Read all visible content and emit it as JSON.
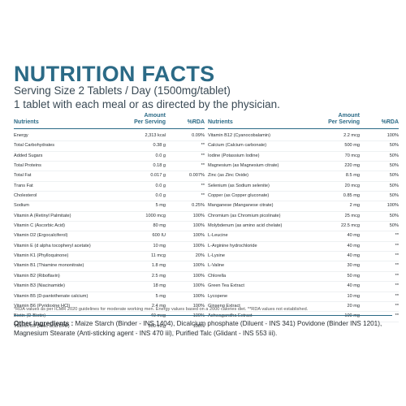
{
  "title": "NUTRITION FACTS",
  "serving": "Serving Size 2 Tablets / Day (1500mg/tablet)",
  "direction": "1 tablet with each meal or as directed by the physician.",
  "left_table": {
    "headers": {
      "nutrients": "Nutrients",
      "amount": "Amount\nPer Serving",
      "rda": "%RDA"
    },
    "rows": [
      {
        "name": "Energy",
        "amount": "2,313 kcal",
        "rda": "0.09%"
      },
      {
        "name": "Total Carbohydrates",
        "amount": "0.38 g",
        "rda": "**"
      },
      {
        "name": "Added Sugars",
        "amount": "0.0 g",
        "rda": "**"
      },
      {
        "name": "Total Proteins",
        "amount": "0.18 g",
        "rda": "**"
      },
      {
        "name": "Total Fat",
        "amount": "0.017 g",
        "rda": "0.007%"
      },
      {
        "name": "Trans Fat",
        "amount": "0.0 g",
        "rda": "**"
      },
      {
        "name": "Cholesterol",
        "amount": "0.0 g",
        "rda": "**"
      },
      {
        "name": "Sodium",
        "amount": "5 mg",
        "rda": "0.25%"
      },
      {
        "name": "Vitamin A (Retinyl Palmitate)",
        "amount": "1000 mcg",
        "rda": "100%"
      },
      {
        "name": "Vitamin C (Ascorbic Acid)",
        "amount": "80 mg",
        "rda": "100%"
      },
      {
        "name": "Vitamin D2 (Ergocalciferol)",
        "amount": "600 IU",
        "rda": "100%"
      },
      {
        "name": "Vitamin E (d alpha tocopheryl acetate)",
        "amount": "10 mg",
        "rda": "100%"
      },
      {
        "name": "Vitamin K1 (Phylloquinone)",
        "amount": "11 mcg",
        "rda": "20%"
      },
      {
        "name": "Vitamin B1 (Thiamine mononitrate)",
        "amount": "1.8 mg",
        "rda": "100%"
      },
      {
        "name": "Vitamin B2 (Riboflavin)",
        "amount": "2.5 mg",
        "rda": "100%"
      },
      {
        "name": "Vitamin B3 (Niacinamide)",
        "amount": "18 mg",
        "rda": "100%"
      },
      {
        "name": "Vitamin B5 (D-pantothenate calcium)",
        "amount": "5 mg",
        "rda": "100%"
      },
      {
        "name": "Vitamin B6 (Pyridoxine HCl)",
        "amount": "2.4 mg",
        "rda": "100%"
      },
      {
        "name": "Biotin (D-Biotin)",
        "amount": "40 mcg",
        "rda": "100%"
      },
      {
        "name": "Vitamin B9 (Folic acid DFE)",
        "amount": "300 mcg",
        "rda": "100%"
      }
    ]
  },
  "right_table": {
    "headers": {
      "nutrients": "Nutrients",
      "amount": "Amount\nPer Serving",
      "rda": "%RDA"
    },
    "rows": [
      {
        "name": "Vitamin B12 (Cyanocobalamin)",
        "amount": "2.2 mcg",
        "rda": "100%"
      },
      {
        "name": "Calcium (Calcium carbonate)",
        "amount": "500 mg",
        "rda": "50%"
      },
      {
        "name": "Iodine (Potassium Iodine)",
        "amount": "70 mcg",
        "rda": "50%"
      },
      {
        "name": "Magnesium (as Magnesium citrate)",
        "amount": "220 mg",
        "rda": "50%"
      },
      {
        "name": "Zinc (as Zinc Oxide)",
        "amount": "8.5 mg",
        "rda": "50%"
      },
      {
        "name": "Selenium (as Sodium selenite)",
        "amount": "20 mcg",
        "rda": "50%"
      },
      {
        "name": "Copper (as Copper gluconate)",
        "amount": "0.85 mg",
        "rda": "50%"
      },
      {
        "name": "Manganese (Manganese citrate)",
        "amount": "2 mg",
        "rda": "100%"
      },
      {
        "name": "Chromium (as Chromium picolinate)",
        "amount": "25 mcg",
        "rda": "50%"
      },
      {
        "name": "Molybdenum (as amino acid chelate)",
        "amount": "22.5 mcg",
        "rda": "50%"
      },
      {
        "name": "L-Leucine",
        "amount": "40 mg",
        "rda": "**"
      },
      {
        "name": "L-Arginine hydrochloride",
        "amount": "40 mg",
        "rda": "**"
      },
      {
        "name": "L-Lysine",
        "amount": "40 mg",
        "rda": "**"
      },
      {
        "name": "L-Valine",
        "amount": "30 mg",
        "rda": "**"
      },
      {
        "name": "Chlorella",
        "amount": "50 mg",
        "rda": "**"
      },
      {
        "name": "Green Tea Extract",
        "amount": "40 mg",
        "rda": "**"
      },
      {
        "name": "Lycopene",
        "amount": "10 mg",
        "rda": "**"
      },
      {
        "name": "Ginseng Extract",
        "amount": "20 mg",
        "rda": "**"
      },
      {
        "name": "Ashwagandha Extract",
        "amount": "100 mg",
        "rda": "**"
      }
    ]
  },
  "footnote": "*RDA values as per ICMR 2020 guidelines for moderate working men. Energy values based on a 2000 calories diet. **RDA values not established.",
  "other_ingredients": {
    "label": "Other ingredients :",
    "text": " Maize Starch (Binder - INS 1404), Dicalcium phosphate (Diluent - INS 341) Povidone (Binder INS 1201), Magnesium Stearate (Anti-sticking agent - INS 470 iii), Purified Talc (Glidant - INS 553 iii)."
  },
  "colors": {
    "accent": "#2b6a86",
    "text": "#2a2f33"
  }
}
